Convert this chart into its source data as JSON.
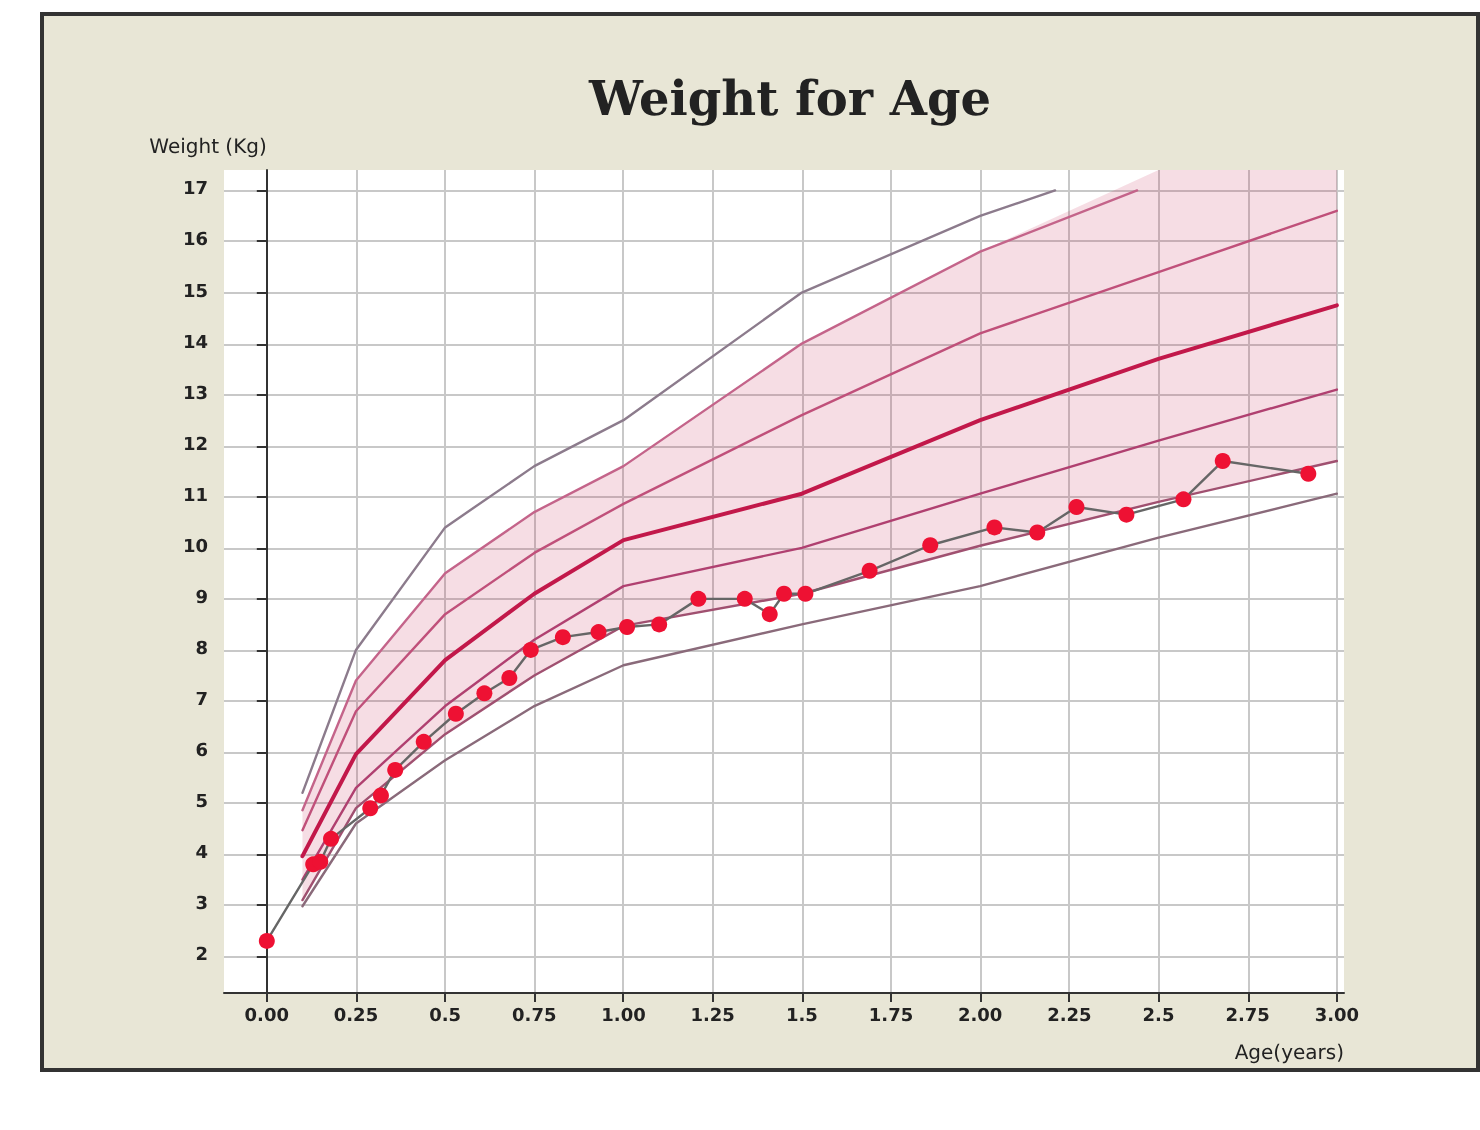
{
  "chart_data": {
    "type": "line",
    "title": "Weight for Age",
    "xlabel": "Age(years)",
    "ylabel": "Weight (Kg)",
    "xlim": [
      -0.12,
      3.02
    ],
    "ylim": [
      1.3,
      17.4
    ],
    "xticks": [
      {
        "value": 0,
        "label": "0.00"
      },
      {
        "value": 0.25,
        "label": "0.25"
      },
      {
        "value": 0.5,
        "label": "0.5"
      },
      {
        "value": 0.75,
        "label": "0.75"
      },
      {
        "value": 1,
        "label": "1.00"
      },
      {
        "value": 1.25,
        "label": "1.25"
      },
      {
        "value": 1.5,
        "label": "1.5"
      },
      {
        "value": 1.75,
        "label": "1.75"
      },
      {
        "value": 2,
        "label": "2.00"
      },
      {
        "value": 2.25,
        "label": "2.25"
      },
      {
        "value": 2.5,
        "label": "2.5"
      },
      {
        "value": 2.75,
        "label": "2.75"
      },
      {
        "value": 3,
        "label": "3.00"
      }
    ],
    "yticks": [
      2,
      3,
      4,
      5,
      6,
      7,
      8,
      9,
      10,
      11,
      12,
      13,
      14,
      15,
      16,
      17
    ],
    "grid": true,
    "line_style": "solid",
    "series": [
      {
        "color": "#8c7b8c",
        "marker": "none",
        "x": [
          0.1,
          0.25,
          0.5,
          0.75,
          1,
          1.5,
          2,
          2.21
        ],
        "values": [
          5.2,
          8.0,
          10.4,
          11.6,
          12.5,
          15.0,
          16.5,
          17
        ]
      },
      {
        "color": "#c4648a",
        "marker": "none",
        "x": [
          0.1,
          0.25,
          0.5,
          0.75,
          1,
          1.5,
          2,
          2.44
        ],
        "values": [
          4.86,
          7.4,
          9.5,
          10.7,
          11.6,
          14.0,
          15.8,
          17
        ]
      },
      {
        "color": "#c0507a",
        "marker": "none",
        "x": [
          0.1,
          0.25,
          0.5,
          0.75,
          1,
          1.5,
          2,
          2.5,
          3
        ],
        "values": [
          4.47,
          6.8,
          8.7,
          9.9,
          10.86,
          12.6,
          14.2,
          15.4,
          16.6
        ]
      },
      {
        "color": "#c2184a",
        "marker": "none",
        "x": [
          0.1,
          0.25,
          0.5,
          0.75,
          1,
          1.5,
          2,
          2.5,
          3
        ],
        "values": [
          3.96,
          5.96,
          7.8,
          9.1,
          10.15,
          11.06,
          12.5,
          13.7,
          14.75
        ],
        "lower": [
          3.1,
          4.9,
          6.35,
          7.5,
          8.47,
          9.1,
          10.04,
          10.9,
          11.7
        ],
        "upper": [
          4.86,
          7.4,
          9.5,
          10.7,
          11.6,
          14.0,
          15.8,
          17.4,
          17.4
        ]
      },
      {
        "color": "#b04070",
        "marker": "none",
        "x": [
          0.1,
          0.25,
          0.5,
          0.75,
          1,
          1.5,
          2,
          2.5,
          3
        ],
        "values": [
          3.5,
          5.3,
          6.9,
          8.2,
          9.25,
          10.0,
          11.06,
          12.1,
          13.1
        ]
      },
      {
        "color": "#a05070",
        "marker": "none",
        "x": [
          0.1,
          0.25,
          0.5,
          0.75,
          1,
          1.5,
          2,
          2.5,
          3
        ],
        "values": [
          3.1,
          4.9,
          6.35,
          7.5,
          8.47,
          9.1,
          10.04,
          10.9,
          11.7
        ]
      },
      {
        "color": "#8a6a7a",
        "marker": "none",
        "x": [
          0.1,
          0.25,
          0.5,
          0.75,
          1,
          1.5,
          2,
          2.5,
          3
        ],
        "values": [
          2.98,
          4.6,
          5.84,
          6.9,
          7.7,
          8.5,
          9.25,
          10.2,
          11.06
        ]
      },
      {
        "color": "#ee1133",
        "marker": "circle",
        "x": [
          0,
          0.13,
          0.15,
          0.18,
          0.29,
          0.32,
          0.36,
          0.44,
          0.53,
          0.61,
          0.68,
          0.74,
          0.83,
          0.93,
          1.01,
          1.1,
          1.21,
          1.34,
          1.41,
          1.45,
          1.51,
          1.69,
          1.86,
          2.04,
          2.16,
          2.27,
          2.41,
          2.57,
          2.68,
          2.92
        ],
        "values": [
          2.3,
          3.8,
          3.85,
          4.3,
          4.9,
          5.15,
          5.65,
          6.2,
          6.75,
          7.15,
          7.45,
          8.0,
          8.25,
          8.35,
          8.45,
          8.5,
          9.0,
          9.0,
          8.7,
          9.1,
          9.1,
          9.55,
          10.05,
          10.4,
          10.3,
          10.8,
          10.65,
          10.95,
          11.7,
          11.45
        ]
      }
    ]
  }
}
